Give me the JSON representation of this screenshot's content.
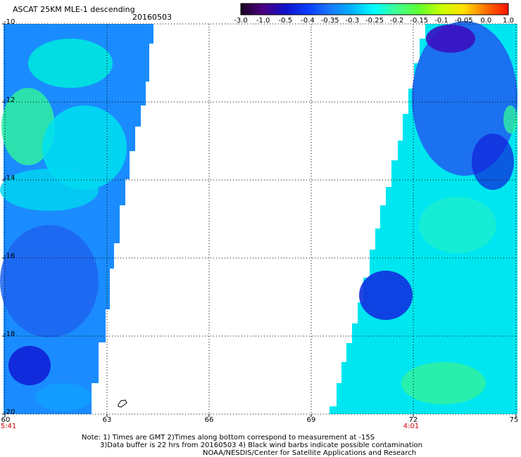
{
  "header": {
    "title": "ASCAT 25KM MLE-1 descending",
    "date": "20160503"
  },
  "colorbar": {
    "labels": [
      "-3.0",
      "-1.0",
      "-0.5",
      "-0.4",
      "-0.35",
      "-0.3",
      "-0.25",
      "-0.2",
      "-0.15",
      "-0.1",
      "-0.05",
      "0.0",
      "1.0"
    ],
    "colors": [
      "#1a0020",
      "#4b0082",
      "#1010c8",
      "#0a3cff",
      "#1a78ff",
      "#00b4ff",
      "#00ffff",
      "#40ff90",
      "#60ff30",
      "#c8ff00",
      "#ffe000",
      "#ff7000",
      "#ff1000"
    ]
  },
  "axes": {
    "lat_labels": [
      "-10",
      "-12",
      "-14",
      "-16",
      "-18",
      "-20"
    ],
    "lon_labels": [
      "60",
      "63",
      "66",
      "69",
      "72",
      "75"
    ],
    "time_labels": [
      {
        "lon": "60",
        "text": "5:41"
      },
      {
        "lon": "72",
        "text": "4:01"
      }
    ]
  },
  "notes": [
    "Note: 1) Times are GMT 2)Times along bottom correspond to measurement at -15S",
    "3)Data buffer is 22 hrs from 20160503 4) Black wind barbs indicate possible contamination",
    "NOAA/NESDIS/Center for Satellite Applications and Research"
  ],
  "colors": {
    "swath_blue": "#1e64f0",
    "swath_cyan": "#00e6f0",
    "swath_green": "#30f0a0"
  }
}
